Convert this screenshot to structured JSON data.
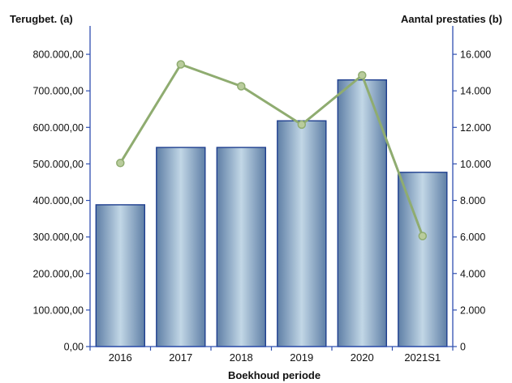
{
  "chart_data": {
    "type": "bar",
    "categories": [
      "2016",
      "2017",
      "2018",
      "2019",
      "2020",
      "2021S1"
    ],
    "series": [
      {
        "kind": "bar",
        "axis": "left",
        "values": [
          388000,
          545000,
          545000,
          618000,
          730000,
          477000
        ]
      },
      {
        "kind": "line",
        "axis": "right",
        "values": [
          10050,
          15450,
          14250,
          12150,
          14850,
          6050
        ]
      }
    ],
    "xlabel": "Boekhoud periode",
    "ylabel_left": "Terugbet. (a)",
    "ylabel_right": "Aantal prestaties (b)",
    "ylim_left": [
      0,
      860000
    ],
    "ylim_right": [
      0,
      17200
    ],
    "yticks_left": [
      0,
      100000,
      200000,
      300000,
      400000,
      500000,
      600000,
      700000,
      800000
    ],
    "yticks_right": [
      0,
      2000,
      4000,
      6000,
      8000,
      10000,
      12000,
      14000,
      16000
    ],
    "ytick_labels_left": [
      "0,00",
      "100.000,00",
      "200.000,00",
      "300.000,00",
      "400.000,00",
      "500.000,00",
      "600.000,00",
      "700.000,00",
      "800.000,00"
    ],
    "ytick_labels_right": [
      "0",
      "2.000",
      "4.000",
      "6.000",
      "8.000",
      "10.000",
      "12.000",
      "14.000",
      "16.000"
    ],
    "grid": false,
    "legend": "none",
    "colors": {
      "bar_fill_edge": "#5f7fa6",
      "bar_fill_center": "#c2d7e6",
      "bar_stroke": "#1f3f8f",
      "line": "#8fac70",
      "marker_fill": "#b9cc9c",
      "axis": "#2f4fb0"
    }
  }
}
